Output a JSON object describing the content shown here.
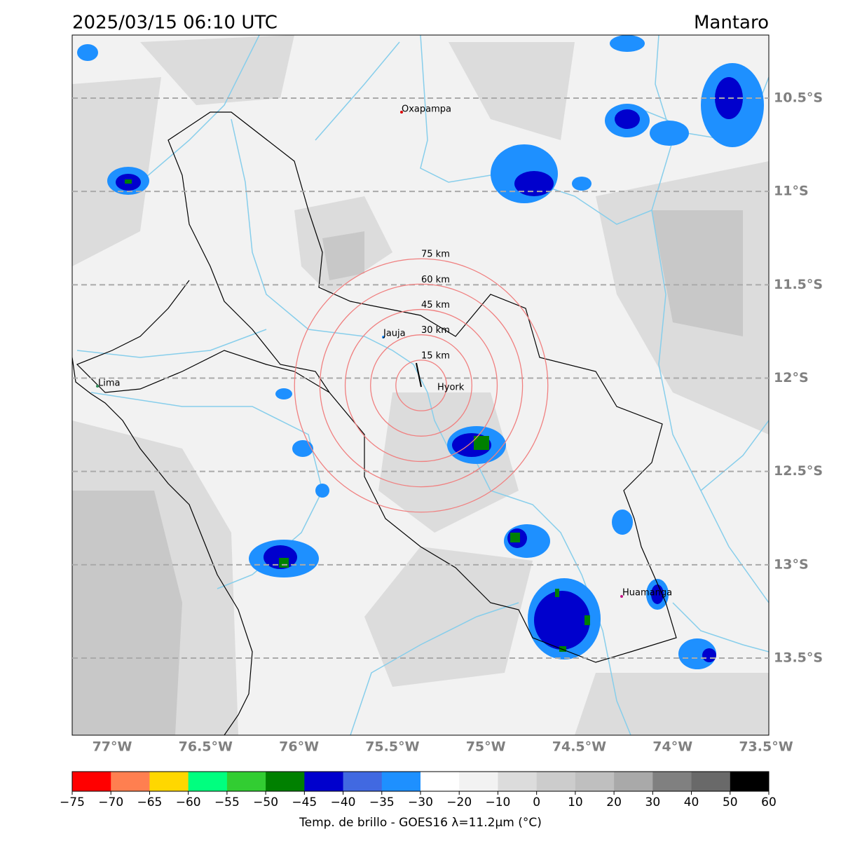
{
  "header": {
    "title": "2025/03/15 06:10 UTC",
    "region": "Mantaro"
  },
  "map": {
    "lon_range": [
      -77.214,
      -73.485
    ],
    "lat_range": [
      -10.162,
      -13.913
    ],
    "lon_ticks": [
      {
        "value": -77,
        "label": "77°W"
      },
      {
        "value": -76.5,
        "label": "76.5°W"
      },
      {
        "value": -76,
        "label": "76°W"
      },
      {
        "value": -75.5,
        "label": "75.5°W"
      },
      {
        "value": -75,
        "label": "75°W"
      },
      {
        "value": -74.5,
        "label": "74.5°W"
      },
      {
        "value": -74,
        "label": "74°W"
      },
      {
        "value": -73.5,
        "label": "73.5°W"
      }
    ],
    "lat_ticks": [
      {
        "value": -10.5,
        "label": "10.5°S"
      },
      {
        "value": -11,
        "label": "11°S"
      },
      {
        "value": -11.5,
        "label": "11.5°S"
      },
      {
        "value": -12,
        "label": "12°S"
      },
      {
        "value": -12.5,
        "label": "12.5°S"
      },
      {
        "value": -13,
        "label": "13°S"
      },
      {
        "value": -13.5,
        "label": "13.5°S"
      }
    ],
    "cities": [
      "Oxapampa",
      "Jauja",
      "Hyork",
      "Lima",
      "Huamanga"
    ],
    "rings": [
      {
        "value": 15,
        "label": "15 km"
      },
      {
        "value": 30,
        "label": "30 km"
      },
      {
        "value": 45,
        "label": "45 km"
      },
      {
        "value": 60,
        "label": "60 km"
      },
      {
        "value": 75,
        "label": "75 km"
      }
    ]
  },
  "colorbar": {
    "ticks": [
      "−75",
      "−70",
      "−65",
      "−60",
      "−55",
      "−50",
      "−45",
      "−40",
      "−35",
      "−30",
      "−20",
      "−10",
      "0",
      "10",
      "20",
      "30",
      "40",
      "50",
      "60"
    ],
    "colors": [
      "#ff0000",
      "#ff7f50",
      "#ffd700",
      "#00ff7f",
      "#32cd32",
      "#008000",
      "#0000cd",
      "#4169e1",
      "#1e90ff",
      "#ffffff",
      "#f2f2f2",
      "#dcdcdc",
      "#cccccc",
      "#bfbfbf",
      "#a9a9a9",
      "#808080",
      "#696969",
      "#000000"
    ],
    "label": "Temp. de brillo - GOES16 λ=11.2μm (°C)"
  }
}
